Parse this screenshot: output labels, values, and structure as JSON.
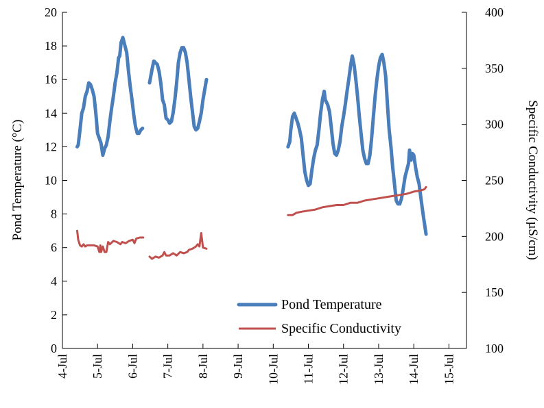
{
  "chart_data": {
    "type": "line",
    "x_tick_labels": [
      "4-Jul",
      "5-Jul",
      "6-Jul",
      "7-Jul",
      "8-Jul",
      "9-Jul",
      "10-Jul",
      "11-Jul",
      "12-Jul",
      "13-Jul",
      "14-Jul",
      "15-Jul"
    ],
    "xlim": [
      4,
      15.5
    ],
    "ylabel": "Pond Temperature (°C)",
    "ylim": [
      0,
      20
    ],
    "y_ticks": [
      "0",
      "2",
      "4",
      "6",
      "8",
      "10",
      "12",
      "14",
      "16",
      "18",
      "20"
    ],
    "y2label": "Specific Conductivity (µS/cm)",
    "y2lim": [
      100,
      400
    ],
    "y2_ticks": [
      "100",
      "150",
      "200",
      "250",
      "300",
      "350",
      "400"
    ],
    "legend_position": "bottom-right",
    "grid": false,
    "series": [
      {
        "name": "Pond Temperature",
        "axis": "left",
        "color": "#4a7ebb",
        "segments": [
          [
            [
              4.42,
              12.0
            ],
            [
              4.45,
              12.1
            ],
            [
              4.5,
              13.0
            ],
            [
              4.55,
              14.0
            ],
            [
              4.6,
              14.3
            ],
            [
              4.65,
              15.0
            ],
            [
              4.7,
              15.3
            ],
            [
              4.75,
              15.8
            ],
            [
              4.8,
              15.7
            ],
            [
              4.85,
              15.4
            ],
            [
              4.9,
              15.0
            ],
            [
              4.95,
              14.0
            ],
            [
              5.0,
              12.8
            ],
            [
              5.05,
              12.5
            ],
            [
              5.1,
              12.2
            ],
            [
              5.15,
              11.5
            ],
            [
              5.2,
              11.9
            ],
            [
              5.25,
              12.1
            ],
            [
              5.3,
              12.6
            ],
            [
              5.35,
              13.5
            ],
            [
              5.4,
              14.3
            ],
            [
              5.45,
              15.0
            ],
            [
              5.5,
              15.8
            ],
            [
              5.55,
              16.4
            ],
            [
              5.6,
              17.3
            ],
            [
              5.63,
              17.4
            ],
            [
              5.67,
              18.2
            ],
            [
              5.72,
              18.5
            ],
            [
              5.78,
              18.0
            ],
            [
              5.83,
              17.6
            ],
            [
              5.88,
              16.5
            ],
            [
              5.93,
              15.6
            ],
            [
              5.98,
              14.8
            ],
            [
              6.03,
              13.9
            ],
            [
              6.08,
              13.2
            ],
            [
              6.13,
              12.8
            ],
            [
              6.18,
              12.8
            ],
            [
              6.23,
              13.0
            ],
            [
              6.28,
              13.1
            ]
          ],
          [
            [
              6.48,
              15.8
            ],
            [
              6.55,
              16.6
            ],
            [
              6.6,
              17.1
            ],
            [
              6.65,
              17.0
            ],
            [
              6.7,
              16.9
            ],
            [
              6.75,
              16.5
            ],
            [
              6.8,
              15.8
            ],
            [
              6.85,
              14.8
            ],
            [
              6.9,
              14.5
            ],
            [
              6.95,
              13.7
            ],
            [
              7.0,
              13.6
            ],
            [
              7.05,
              13.4
            ],
            [
              7.1,
              13.5
            ],
            [
              7.15,
              14.0
            ],
            [
              7.2,
              14.8
            ],
            [
              7.25,
              15.8
            ],
            [
              7.3,
              17.0
            ],
            [
              7.35,
              17.6
            ],
            [
              7.4,
              17.9
            ],
            [
              7.45,
              17.9
            ],
            [
              7.5,
              17.6
            ],
            [
              7.55,
              17.0
            ],
            [
              7.6,
              16.0
            ],
            [
              7.65,
              15.0
            ],
            [
              7.7,
              14.1
            ],
            [
              7.75,
              13.2
            ],
            [
              7.8,
              13.0
            ],
            [
              7.85,
              13.1
            ],
            [
              7.9,
              13.5
            ],
            [
              7.95,
              14.0
            ],
            [
              8.0,
              14.8
            ],
            [
              8.05,
              15.4
            ],
            [
              8.1,
              16.0
            ]
          ],
          [
            [
              10.42,
              12.0
            ],
            [
              10.47,
              12.3
            ],
            [
              10.5,
              13.0
            ],
            [
              10.55,
              13.8
            ],
            [
              10.6,
              14.0
            ],
            [
              10.65,
              13.7
            ],
            [
              10.7,
              13.4
            ],
            [
              10.75,
              13.0
            ],
            [
              10.8,
              12.5
            ],
            [
              10.85,
              11.5
            ],
            [
              10.9,
              10.5
            ],
            [
              10.95,
              10.0
            ],
            [
              11.0,
              9.7
            ],
            [
              11.05,
              9.8
            ],
            [
              11.1,
              10.6
            ],
            [
              11.15,
              11.3
            ],
            [
              11.2,
              11.8
            ],
            [
              11.25,
              12.1
            ],
            [
              11.3,
              13.0
            ],
            [
              11.35,
              14.0
            ],
            [
              11.4,
              14.8
            ],
            [
              11.45,
              15.3
            ],
            [
              11.48,
              14.8
            ],
            [
              11.55,
              14.5
            ],
            [
              11.6,
              14.1
            ],
            [
              11.65,
              13.2
            ],
            [
              11.7,
              12.2
            ],
            [
              11.75,
              11.6
            ],
            [
              11.8,
              11.5
            ],
            [
              11.85,
              11.8
            ],
            [
              11.9,
              12.3
            ],
            [
              11.95,
              13.2
            ],
            [
              12.0,
              13.8
            ],
            [
              12.05,
              14.5
            ],
            [
              12.1,
              15.3
            ],
            [
              12.15,
              16.0
            ],
            [
              12.2,
              16.8
            ],
            [
              12.25,
              17.4
            ],
            [
              12.3,
              16.9
            ],
            [
              12.35,
              16.0
            ],
            [
              12.4,
              15.0
            ],
            [
              12.45,
              13.8
            ],
            [
              12.5,
              12.8
            ],
            [
              12.55,
              11.8
            ],
            [
              12.6,
              11.3
            ],
            [
              12.65,
              11.0
            ],
            [
              12.7,
              11.0
            ],
            [
              12.75,
              11.5
            ],
            [
              12.8,
              12.5
            ],
            [
              12.85,
              13.8
            ],
            [
              12.9,
              15.0
            ],
            [
              12.95,
              16.0
            ],
            [
              13.0,
              16.8
            ],
            [
              13.05,
              17.3
            ],
            [
              13.1,
              17.5
            ],
            [
              13.15,
              17.0
            ],
            [
              13.2,
              16.2
            ],
            [
              13.25,
              14.5
            ],
            [
              13.3,
              13.0
            ],
            [
              13.35,
              12.0
            ],
            [
              13.4,
              10.8
            ],
            [
              13.45,
              9.8
            ],
            [
              13.5,
              8.8
            ],
            [
              13.55,
              8.6
            ],
            [
              13.6,
              8.6
            ],
            [
              13.65,
              8.9
            ],
            [
              13.7,
              9.5
            ],
            [
              13.75,
              10.2
            ],
            [
              13.8,
              10.6
            ],
            [
              13.85,
              11.0
            ],
            [
              13.88,
              11.8
            ],
            [
              13.92,
              11.2
            ],
            [
              13.96,
              11.6
            ],
            [
              14.0,
              11.5
            ],
            [
              14.05,
              10.8
            ],
            [
              14.1,
              10.2
            ],
            [
              14.15,
              9.8
            ],
            [
              14.2,
              9.0
            ],
            [
              14.25,
              8.2
            ],
            [
              14.3,
              7.5
            ],
            [
              14.35,
              6.8
            ]
          ]
        ]
      },
      {
        "name": "Specific Conductivity",
        "axis": "right",
        "color": "#c0504d",
        "segments": [
          [
            [
              4.42,
              205
            ],
            [
              4.45,
              197
            ],
            [
              4.5,
              192
            ],
            [
              4.55,
              191
            ],
            [
              4.6,
              193
            ],
            [
              4.65,
              191
            ],
            [
              4.7,
              192
            ],
            [
              4.8,
              192
            ],
            [
              4.9,
              192
            ],
            [
              5.0,
              191
            ],
            [
              5.05,
              186
            ],
            [
              5.08,
              192
            ],
            [
              5.1,
              186
            ],
            [
              5.15,
              191
            ],
            [
              5.2,
              186
            ],
            [
              5.25,
              186
            ],
            [
              5.3,
              195
            ],
            [
              5.35,
              193
            ],
            [
              5.45,
              196
            ],
            [
              5.55,
              195
            ],
            [
              5.65,
              193
            ],
            [
              5.7,
              195
            ],
            [
              5.8,
              194
            ],
            [
              5.9,
              196
            ],
            [
              6.0,
              197
            ],
            [
              6.05,
              194
            ],
            [
              6.1,
              198
            ],
            [
              6.2,
              199
            ],
            [
              6.3,
              199
            ]
          ],
          [
            [
              6.48,
              182
            ],
            [
              6.55,
              180
            ],
            [
              6.65,
              182
            ],
            [
              6.75,
              181
            ],
            [
              6.85,
              183
            ],
            [
              6.9,
              186
            ],
            [
              6.95,
              183
            ],
            [
              7.05,
              183
            ],
            [
              7.15,
              185
            ],
            [
              7.25,
              183
            ],
            [
              7.35,
              186
            ],
            [
              7.45,
              185
            ],
            [
              7.55,
              186
            ],
            [
              7.6,
              188
            ],
            [
              7.7,
              189
            ],
            [
              7.8,
              191
            ],
            [
              7.85,
              193
            ],
            [
              7.9,
              191
            ],
            [
              7.95,
              203
            ],
            [
              8.0,
              190
            ],
            [
              8.1,
              189
            ]
          ],
          [
            [
              10.42,
              219
            ],
            [
              10.55,
              219
            ],
            [
              10.65,
              221
            ],
            [
              10.8,
              222
            ],
            [
              11.0,
              223
            ],
            [
              11.2,
              224
            ],
            [
              11.4,
              226
            ],
            [
              11.6,
              227
            ],
            [
              11.8,
              228
            ],
            [
              12.0,
              228
            ],
            [
              12.2,
              230
            ],
            [
              12.4,
              230
            ],
            [
              12.6,
              232
            ],
            [
              12.8,
              233
            ],
            [
              13.0,
              234
            ],
            [
              13.2,
              235
            ],
            [
              13.4,
              236
            ],
            [
              13.6,
              237
            ],
            [
              13.8,
              238
            ],
            [
              14.0,
              240
            ],
            [
              14.2,
              241
            ],
            [
              14.3,
              242
            ],
            [
              14.35,
              244
            ]
          ]
        ]
      }
    ]
  },
  "legend": {
    "items": [
      {
        "label": "Pond Temperature",
        "color": "#4a7ebb"
      },
      {
        "label": "Specific Conductivity",
        "color": "#c0504d"
      }
    ]
  }
}
